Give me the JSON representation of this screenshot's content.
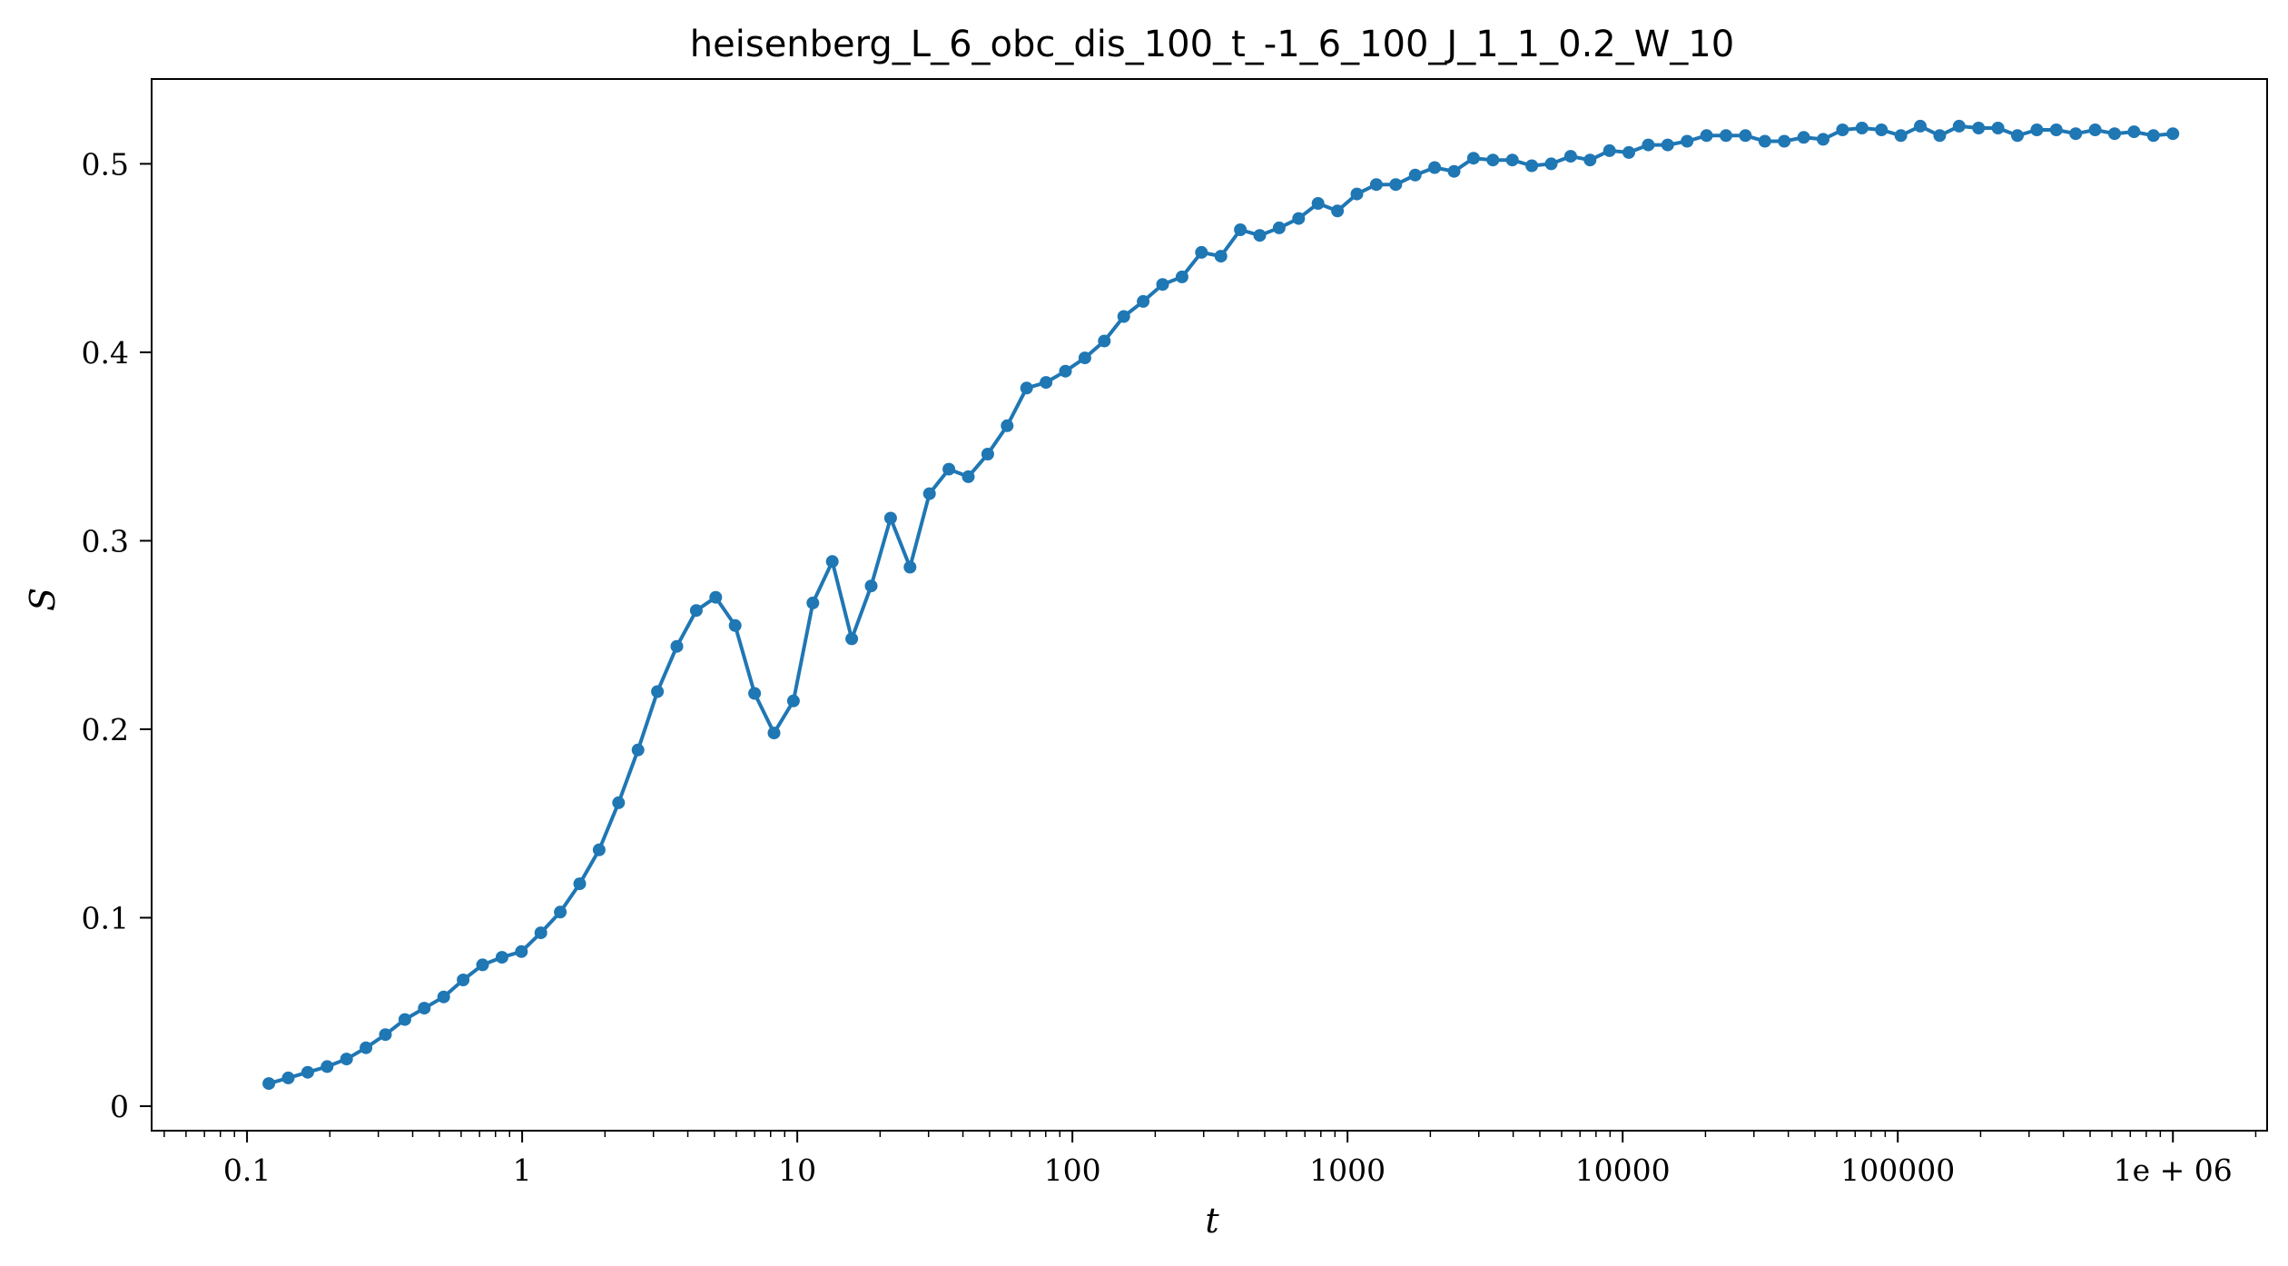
{
  "chart_data": {
    "type": "line",
    "title": "heisenberg_L_6_obc_dis_100_t_-1_6_100_J_1_1_0.2_W_10",
    "xlabel": "t",
    "ylabel": "S",
    "x_scale": "log",
    "xlim": [
      0.045,
      2200000
    ],
    "ylim": [
      -0.013,
      0.545
    ],
    "grid": false,
    "marker": "circle",
    "color": "#1f77b4",
    "x_ticks": [
      {
        "value": 0.1,
        "label": "0.1"
      },
      {
        "value": 1,
        "label": "1"
      },
      {
        "value": 10,
        "label": "10"
      },
      {
        "value": 100,
        "label": "100"
      },
      {
        "value": 1000,
        "label": "1000"
      },
      {
        "value": 10000,
        "label": "10000"
      },
      {
        "value": 100000,
        "label": "100000"
      },
      {
        "value": 1000000,
        "label": "1e + 06"
      }
    ],
    "y_ticks": [
      {
        "value": 0,
        "label": "0"
      },
      {
        "value": 0.1,
        "label": "0.1"
      },
      {
        "value": 0.2,
        "label": "0.2"
      },
      {
        "value": 0.3,
        "label": "0.3"
      },
      {
        "value": 0.4,
        "label": "0.4"
      },
      {
        "value": 0.5,
        "label": "0.5"
      }
    ],
    "series": [
      {
        "x_start": 0.12,
        "x_end": 1000000,
        "spacing": "log-uniform",
        "values": [
          0.012,
          0.015,
          0.018,
          0.021,
          0.025,
          0.031,
          0.038,
          0.046,
          0.052,
          0.058,
          0.067,
          0.075,
          0.079,
          0.082,
          0.092,
          0.103,
          0.118,
          0.136,
          0.161,
          0.189,
          0.22,
          0.244,
          0.263,
          0.27,
          0.255,
          0.219,
          0.198,
          0.215,
          0.267,
          0.289,
          0.248,
          0.276,
          0.312,
          0.286,
          0.325,
          0.338,
          0.334,
          0.346,
          0.361,
          0.381,
          0.384,
          0.39,
          0.397,
          0.406,
          0.419,
          0.427,
          0.436,
          0.44,
          0.453,
          0.451,
          0.465,
          0.462,
          0.466,
          0.471,
          0.479,
          0.475,
          0.484,
          0.489,
          0.489,
          0.494,
          0.498,
          0.496,
          0.503,
          0.502,
          0.502,
          0.499,
          0.5,
          0.504,
          0.502,
          0.507,
          0.506,
          0.51,
          0.51,
          0.512,
          0.515,
          0.515,
          0.515,
          0.512,
          0.512,
          0.514,
          0.513,
          0.518,
          0.519,
          0.518,
          0.515,
          0.52,
          0.515,
          0.52,
          0.519,
          0.519,
          0.515,
          0.518,
          0.518,
          0.516,
          0.518,
          0.516,
          0.517,
          0.515,
          0.516
        ]
      }
    ]
  }
}
